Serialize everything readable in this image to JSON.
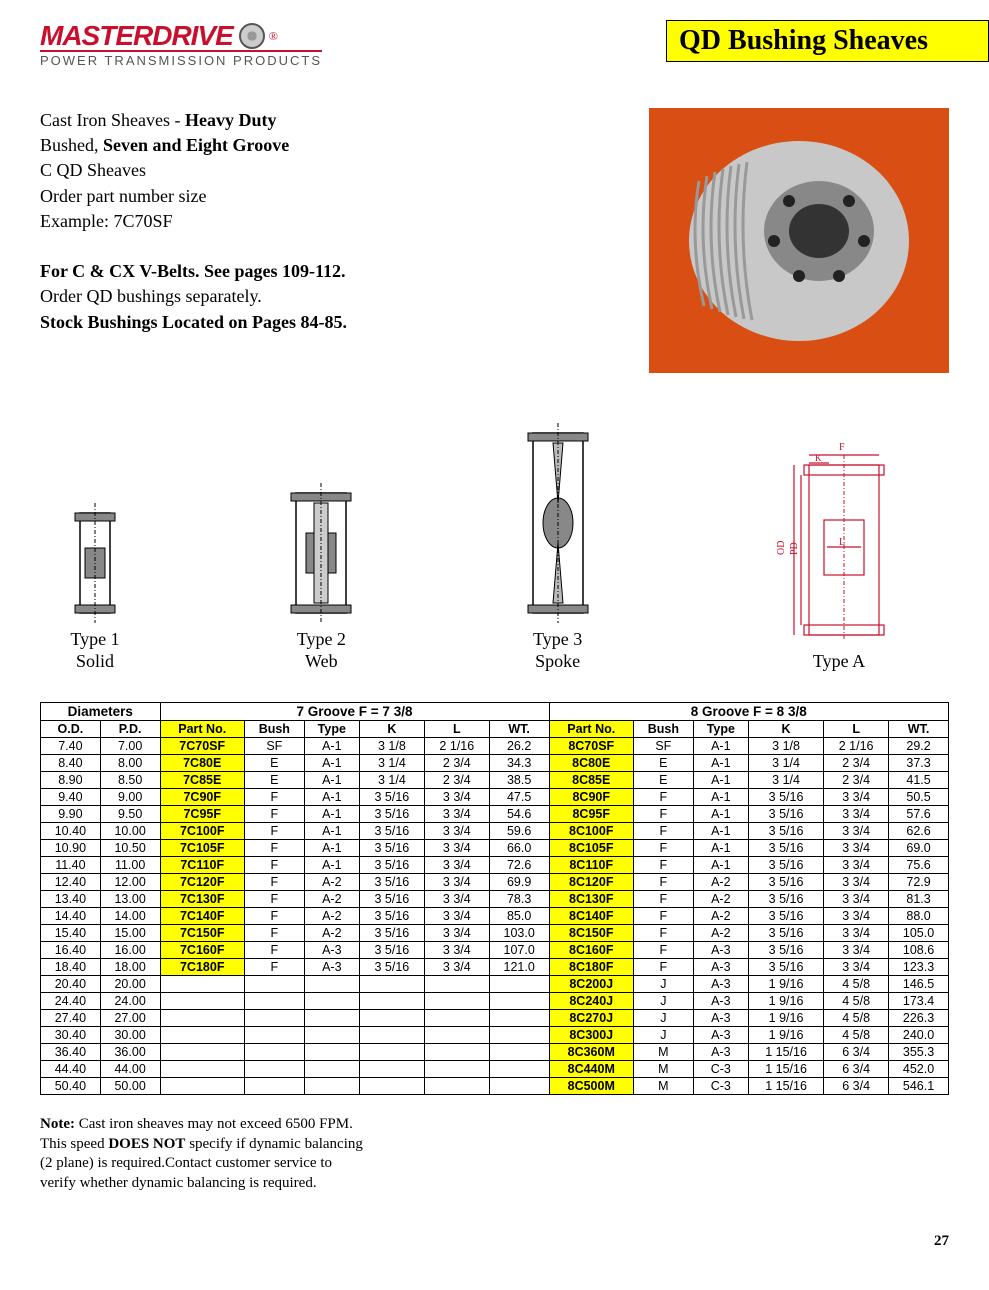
{
  "brand": {
    "name": "MASTERDRIVE",
    "tag": "®",
    "sub": "POWER TRANSMISSION PRODUCTS"
  },
  "title": "QD Bushing Sheaves",
  "intro": {
    "l1a": "Cast Iron Sheaves - ",
    "l1b": "Heavy Duty",
    "l2a": "Bushed, ",
    "l2b": "Seven and Eight Groove",
    "l3": "C QD Sheaves",
    "l4": "Order part number size",
    "l5": "Example:  7C70SF",
    "l6": "For C & CX V-Belts. See pages 109-112.",
    "l7": "Order QD bushings separately.",
    "l8": "Stock Bushings Located on Pages 84-85."
  },
  "diagrams": {
    "d1a": "Type 1",
    "d1b": "Solid",
    "d2a": "Type 2",
    "d2b": "Web",
    "d3a": "Type 3",
    "d3b": "Spoke",
    "d4a": "Type A"
  },
  "table": {
    "hdr_diam": "Diameters",
    "hdr_7g": "7  Groove F = 7 3/8",
    "hdr_8g": "8 Groove  F = 8 3/8",
    "cols": {
      "od": "O.D.",
      "pd": "P.D.",
      "pn": "Part No.",
      "bush": "Bush",
      "type": "Type",
      "k": "K",
      "l": "L",
      "wt": "WT."
    },
    "rows": [
      {
        "od": "7.40",
        "pd": "7.00",
        "p7": "7C70SF",
        "b7": "SF",
        "t7": "A-1",
        "k7": "3 1/8",
        "l7": "2 1/16",
        "w7": "26.2",
        "p8": "8C70SF",
        "b8": "SF",
        "t8": "A-1",
        "k8": "3 1/8",
        "l8": "2 1/16",
        "w8": "29.2"
      },
      {
        "od": "8.40",
        "pd": "8.00",
        "p7": "7C80E",
        "b7": "E",
        "t7": "A-1",
        "k7": "3 1/4",
        "l7": "2 3/4",
        "w7": "34.3",
        "p8": "8C80E",
        "b8": "E",
        "t8": "A-1",
        "k8": "3 1/4",
        "l8": "2 3/4",
        "w8": "37.3"
      },
      {
        "od": "8.90",
        "pd": "8.50",
        "p7": "7C85E",
        "b7": "E",
        "t7": "A-1",
        "k7": "3 1/4",
        "l7": "2 3/4",
        "w7": "38.5",
        "p8": "8C85E",
        "b8": "E",
        "t8": "A-1",
        "k8": "3 1/4",
        "l8": "2 3/4",
        "w8": "41.5"
      },
      {
        "od": "9.40",
        "pd": "9.00",
        "p7": "7C90F",
        "b7": "F",
        "t7": "A-1",
        "k7": "3 5/16",
        "l7": "3 3/4",
        "w7": "47.5",
        "p8": "8C90F",
        "b8": "F",
        "t8": "A-1",
        "k8": "3 5/16",
        "l8": "3 3/4",
        "w8": "50.5"
      },
      {
        "od": "9.90",
        "pd": "9.50",
        "p7": "7C95F",
        "b7": "F",
        "t7": "A-1",
        "k7": "3 5/16",
        "l7": "3 3/4",
        "w7": "54.6",
        "p8": "8C95F",
        "b8": "F",
        "t8": "A-1",
        "k8": "3 5/16",
        "l8": "3 3/4",
        "w8": "57.6"
      },
      {
        "od": "10.40",
        "pd": "10.00",
        "p7": "7C100F",
        "b7": "F",
        "t7": "A-1",
        "k7": "3 5/16",
        "l7": "3 3/4",
        "w7": "59.6",
        "p8": "8C100F",
        "b8": "F",
        "t8": "A-1",
        "k8": "3 5/16",
        "l8": "3 3/4",
        "w8": "62.6"
      },
      {
        "od": "10.90",
        "pd": "10.50",
        "p7": "7C105F",
        "b7": "F",
        "t7": "A-1",
        "k7": "3 5/16",
        "l7": "3 3/4",
        "w7": "66.0",
        "p8": "8C105F",
        "b8": "F",
        "t8": "A-1",
        "k8": "3 5/16",
        "l8": "3 3/4",
        "w8": "69.0"
      },
      {
        "od": "11.40",
        "pd": "11.00",
        "p7": "7C110F",
        "b7": "F",
        "t7": "A-1",
        "k7": "3 5/16",
        "l7": "3 3/4",
        "w7": "72.6",
        "p8": "8C110F",
        "b8": "F",
        "t8": "A-1",
        "k8": "3 5/16",
        "l8": "3 3/4",
        "w8": "75.6"
      },
      {
        "od": "12.40",
        "pd": "12.00",
        "p7": "7C120F",
        "b7": "F",
        "t7": "A-2",
        "k7": "3 5/16",
        "l7": "3 3/4",
        "w7": "69.9",
        "p8": "8C120F",
        "b8": "F",
        "t8": "A-2",
        "k8": "3 5/16",
        "l8": "3 3/4",
        "w8": "72.9"
      },
      {
        "od": "13.40",
        "pd": "13.00",
        "p7": "7C130F",
        "b7": "F",
        "t7": "A-2",
        "k7": "3 5/16",
        "l7": "3 3/4",
        "w7": "78.3",
        "p8": "8C130F",
        "b8": "F",
        "t8": "A-2",
        "k8": "3 5/16",
        "l8": "3 3/4",
        "w8": "81.3"
      },
      {
        "od": "14.40",
        "pd": "14.00",
        "p7": "7C140F",
        "b7": "F",
        "t7": "A-2",
        "k7": "3 5/16",
        "l7": "3 3/4",
        "w7": "85.0",
        "p8": "8C140F",
        "b8": "F",
        "t8": "A-2",
        "k8": "3 5/16",
        "l8": "3 3/4",
        "w8": "88.0"
      },
      {
        "od": "15.40",
        "pd": "15.00",
        "p7": "7C150F",
        "b7": "F",
        "t7": "A-2",
        "k7": "3 5/16",
        "l7": "3 3/4",
        "w7": "103.0",
        "p8": "8C150F",
        "b8": "F",
        "t8": "A-2",
        "k8": "3 5/16",
        "l8": "3 3/4",
        "w8": "105.0"
      },
      {
        "od": "16.40",
        "pd": "16.00",
        "p7": "7C160F",
        "b7": "F",
        "t7": "A-3",
        "k7": "3 5/16",
        "l7": "3 3/4",
        "w7": "107.0",
        "p8": "8C160F",
        "b8": "F",
        "t8": "A-3",
        "k8": "3 5/16",
        "l8": "3 3/4",
        "w8": "108.6"
      },
      {
        "od": "18.40",
        "pd": "18.00",
        "p7": "7C180F",
        "b7": "F",
        "t7": "A-3",
        "k7": "3 5/16",
        "l7": "3 3/4",
        "w7": "121.0",
        "p8": "8C180F",
        "b8": "F",
        "t8": "A-3",
        "k8": "3 5/16",
        "l8": "3 3/4",
        "w8": "123.3"
      },
      {
        "od": "20.40",
        "pd": "20.00",
        "p7": "",
        "b7": "",
        "t7": "",
        "k7": "",
        "l7": "",
        "w7": "",
        "p8": "8C200J",
        "b8": "J",
        "t8": "A-3",
        "k8": "1 9/16",
        "l8": "4 5/8",
        "w8": "146.5"
      },
      {
        "od": "24.40",
        "pd": "24.00",
        "p7": "",
        "b7": "",
        "t7": "",
        "k7": "",
        "l7": "",
        "w7": "",
        "p8": "8C240J",
        "b8": "J",
        "t8": "A-3",
        "k8": "1 9/16",
        "l8": "4 5/8",
        "w8": "173.4"
      },
      {
        "od": "27.40",
        "pd": "27.00",
        "p7": "",
        "b7": "",
        "t7": "",
        "k7": "",
        "l7": "",
        "w7": "",
        "p8": "8C270J",
        "b8": "J",
        "t8": "A-3",
        "k8": "1 9/16",
        "l8": "4 5/8",
        "w8": "226.3"
      },
      {
        "od": "30.40",
        "pd": "30.00",
        "p7": "",
        "b7": "",
        "t7": "",
        "k7": "",
        "l7": "",
        "w7": "",
        "p8": "8C300J",
        "b8": "J",
        "t8": "A-3",
        "k8": "1 9/16",
        "l8": "4 5/8",
        "w8": "240.0"
      },
      {
        "od": "36.40",
        "pd": "36.00",
        "p7": "",
        "b7": "",
        "t7": "",
        "k7": "",
        "l7": "",
        "w7": "",
        "p8": "8C360M",
        "b8": "M",
        "t8": "A-3",
        "k8": "1 15/16",
        "l8": "6 3/4",
        "w8": "355.3"
      },
      {
        "od": "44.40",
        "pd": "44.00",
        "p7": "",
        "b7": "",
        "t7": "",
        "k7": "",
        "l7": "",
        "w7": "",
        "p8": "8C440M",
        "b8": "M",
        "t8": "C-3",
        "k8": "1 15/16",
        "l8": "6 3/4",
        "w8": "452.0"
      },
      {
        "od": "50.40",
        "pd": "50.00",
        "p7": "",
        "b7": "",
        "t7": "",
        "k7": "",
        "l7": "",
        "w7": "",
        "p8": "8C500M",
        "b8": "M",
        "t8": "C-3",
        "k8": "1 15/16",
        "l8": "6 3/4",
        "w8": "546.1"
      }
    ]
  },
  "note": {
    "n1a": "Note:",
    "n1b": " Cast iron sheaves may not exceed 6500 FPM.",
    "n2a": "This speed ",
    "n2b": "DOES NOT",
    "n2c": " specify if dynamic balancing",
    "n3": "(2 plane) is required.Contact customer service to",
    "n4": "verify whether dynamic balancing is required."
  },
  "page": "27"
}
